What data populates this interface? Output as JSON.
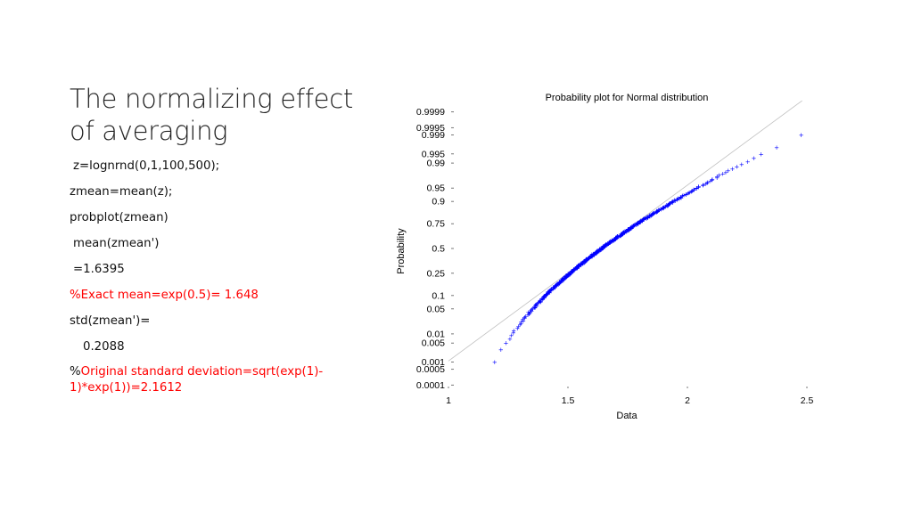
{
  "slide": {
    "title_line1": "The normalizing effect",
    "title_line2": "of averaging",
    "lines": [
      {
        "text": "z=lognrnd(0,1,100,500);",
        "color": "#111111"
      },
      {
        "text": "zmean=mean(z);",
        "color": "#111111"
      },
      {
        "text": "probplot(zmean)",
        "color": "#111111"
      },
      {
        "text": "mean(zmean')",
        "color": "#111111"
      },
      {
        "text": "=1.6395",
        "color": "#111111"
      },
      {
        "text": "%Exact mean=exp(0.5)= 1.648",
        "color": "#ff0000"
      },
      {
        "text": "std(zmean')=",
        "color": "#111111"
      },
      {
        "text": "0.2088",
        "color": "#111111"
      }
    ],
    "last_prefix": "%",
    "last_red_line1": "Original standard deviation=sqrt(exp(1)-",
    "last_red_line2": "1)*exp(1))=2.1612"
  },
  "chart_data": {
    "type": "scatter",
    "title": "Probability plot for Normal distribution",
    "xlabel": "Data",
    "ylabel": "Probability",
    "xlim": [
      1,
      2.5
    ],
    "x_ticks": [
      "1",
      "1.5",
      "2",
      "2.5"
    ],
    "y_ticks": [
      "0.0001",
      "0.0005",
      "0.001",
      "0.005",
      "0.01",
      "0.05",
      "0.1",
      "0.25",
      "0.5",
      "0.75",
      "0.9",
      "0.95",
      "0.99",
      "0.995",
      "0.999",
      "0.9995",
      "0.9999"
    ],
    "reference_line": {
      "mean": 1.6395,
      "std": 0.2088
    },
    "n_points": 500,
    "marker_color": "#0000ff",
    "line_color": "#c0c0c0"
  }
}
